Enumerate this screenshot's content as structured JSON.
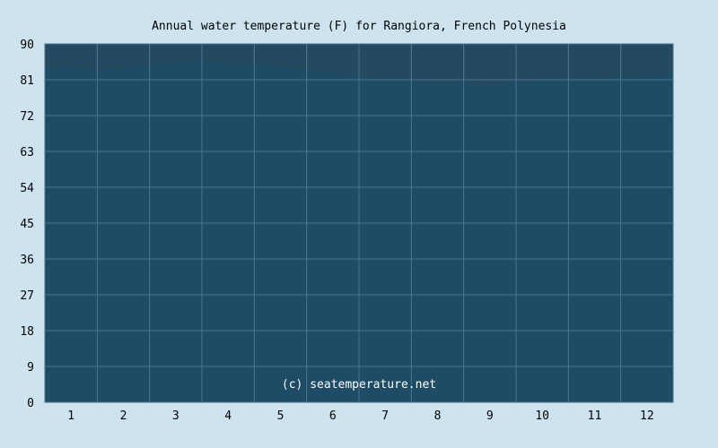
{
  "chart_data": {
    "type": "area",
    "title": "Annual water temperature (F) for Rangiora, French Polynesia",
    "credit": "(c) seatemperature.net",
    "xlabel": "",
    "ylabel": "",
    "categories": [
      "1",
      "2",
      "3",
      "4",
      "5",
      "6",
      "7",
      "8",
      "9",
      "10",
      "11",
      "12"
    ],
    "x": [
      0.0,
      0.5,
      1.0,
      1.5,
      2.0,
      2.5,
      3.0,
      3.5,
      4.0,
      4.5,
      5.0,
      5.5,
      6.0,
      6.5,
      7.0,
      7.5,
      8.0,
      8.5,
      9.0,
      9.5,
      10.0,
      10.5,
      11.0,
      11.5,
      12.0
    ],
    "values": [
      83.8,
      84.2,
      83.3,
      84.0,
      84.5,
      85.3,
      86.0,
      85.0,
      84.8,
      84.4,
      83.6,
      82.6,
      82.1,
      81.0,
      80.6,
      80.0,
      80.0,
      79.4,
      80.2,
      80.8,
      81.3,
      81.3,
      81.9,
      82.3,
      82.7
    ],
    "ylim": [
      0,
      90
    ],
    "yticks": [
      "0",
      "9",
      "18",
      "27",
      "36",
      "45",
      "54",
      "63",
      "72",
      "81",
      "90"
    ],
    "grid": true,
    "colors": {
      "background": "#cde3f0",
      "plot": "#25495f",
      "fill": "#1d4d69",
      "grid": "#4a7590"
    }
  }
}
